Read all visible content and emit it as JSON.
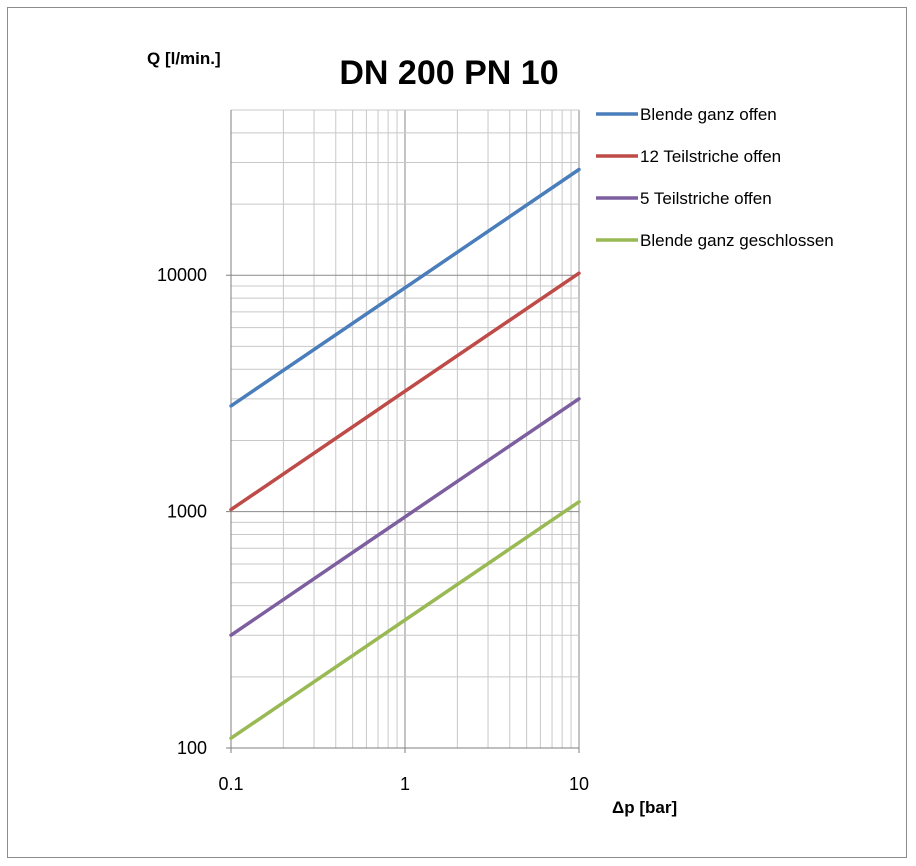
{
  "chart_data": {
    "type": "line",
    "title": "DN 200 PN 10",
    "xlabel": "Δp [bar]",
    "ylabel": "Q [l/min.]",
    "x_scale": "log",
    "y_scale": "log",
    "xlim": [
      0.1,
      10
    ],
    "ylim": [
      100,
      50000
    ],
    "x_ticks": [
      "0.1",
      "1",
      "10"
    ],
    "y_ticks": [
      "100",
      "1000",
      "10000"
    ],
    "grid": true,
    "legend_position": "right",
    "series": [
      {
        "name": "Blende ganz offen",
        "color": "#4a7ebb",
        "x": [
          0.1,
          1,
          10
        ],
        "y": [
          2800,
          8850,
          28000
        ]
      },
      {
        "name": "12 Teilstriche offen",
        "color": "#be4b48",
        "x": [
          0.1,
          1,
          10
        ],
        "y": [
          1020,
          3230,
          10200
        ]
      },
      {
        "name": "5 Teilstriche offen",
        "color": "#7d5fa0",
        "x": [
          0.1,
          1,
          10
        ],
        "y": [
          300,
          950,
          3000
        ]
      },
      {
        "name": "Blende ganz geschlossen",
        "color": "#98b954",
        "x": [
          0.1,
          1,
          10
        ],
        "y": [
          110,
          348,
          1100
        ]
      }
    ]
  }
}
